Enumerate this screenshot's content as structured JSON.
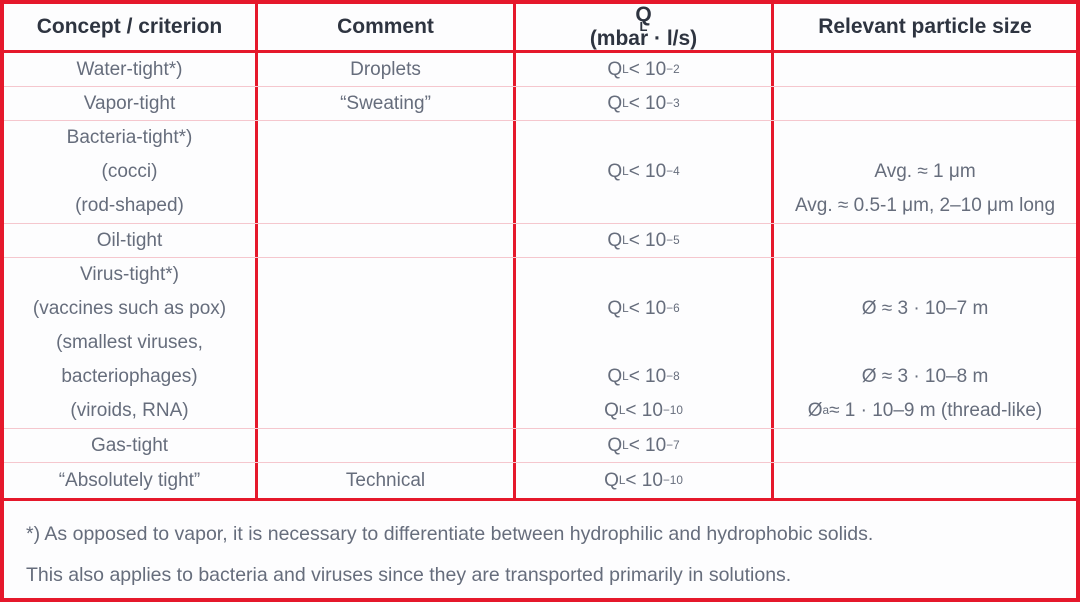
{
  "colors": {
    "border_red": "#e5182b",
    "separator_pink": "#f5c7ce",
    "header_text": "#2e3440",
    "body_text": "#666d7c",
    "background": "#fdfdfe"
  },
  "header": {
    "columns": [
      "Concept / criterion",
      "Comment",
      "Q_L_ (mbar · l/s)",
      "Relevant particle size"
    ]
  },
  "rows": [
    {
      "concept": "Water-tight*)",
      "comment": "Droplets",
      "ql": "Q_L_ < 10^−2^",
      "size": ""
    },
    {
      "concept": "Vapor-tight",
      "comment": "“Sweating”",
      "ql": "Q_L_ < 10^−3^",
      "size": ""
    },
    {
      "concept": [
        "Bacteria-tight*)",
        "(cocci)",
        "(rod-shaped)"
      ],
      "comment": [
        "",
        "",
        ""
      ],
      "ql": [
        "",
        "Q_L_ < 10^−4^",
        ""
      ],
      "size": [
        "",
        "Avg. ≈ 1 μm",
        "Avg. ≈ 0.5-1 μm, 2–10 μm long"
      ]
    },
    {
      "concept": "Oil-tight",
      "comment": "",
      "ql": "Q_L_ < 10^−5^",
      "size": ""
    },
    {
      "concept": [
        "Virus-tight*)",
        "(vaccines such as pox)",
        "(smallest viruses,",
        "bacteriophages)",
        "(viroids, RNA)"
      ],
      "comment": [
        "",
        "",
        "",
        "",
        ""
      ],
      "ql": [
        "",
        "Q_L_ < 10^−6^",
        "",
        "Q_L_ < 10^−8^",
        "Q_L_ < 10^−10^"
      ],
      "size": [
        "",
        "Ø ≈ 3 · 10–7 m",
        "",
        "Ø ≈ 3 · 10–8 m",
        "Ø ^a^≈ 1 · 10–9 m (thread-like)"
      ]
    },
    {
      "concept": "Gas-tight",
      "comment": "",
      "ql": "Q_L_ < 10^−7^",
      "size": ""
    },
    {
      "concept": "“Absolutely tight”",
      "comment": "Technical",
      "ql": "Q_L_ < 10^−10^",
      "size": ""
    }
  ],
  "footnote": {
    "line1": "*) As opposed to vapor, it is necessary to differentiate between hydrophilic and hydrophobic solids.",
    "line2": "This also applies to bacteria and viruses since they are transported primarily in solutions."
  }
}
